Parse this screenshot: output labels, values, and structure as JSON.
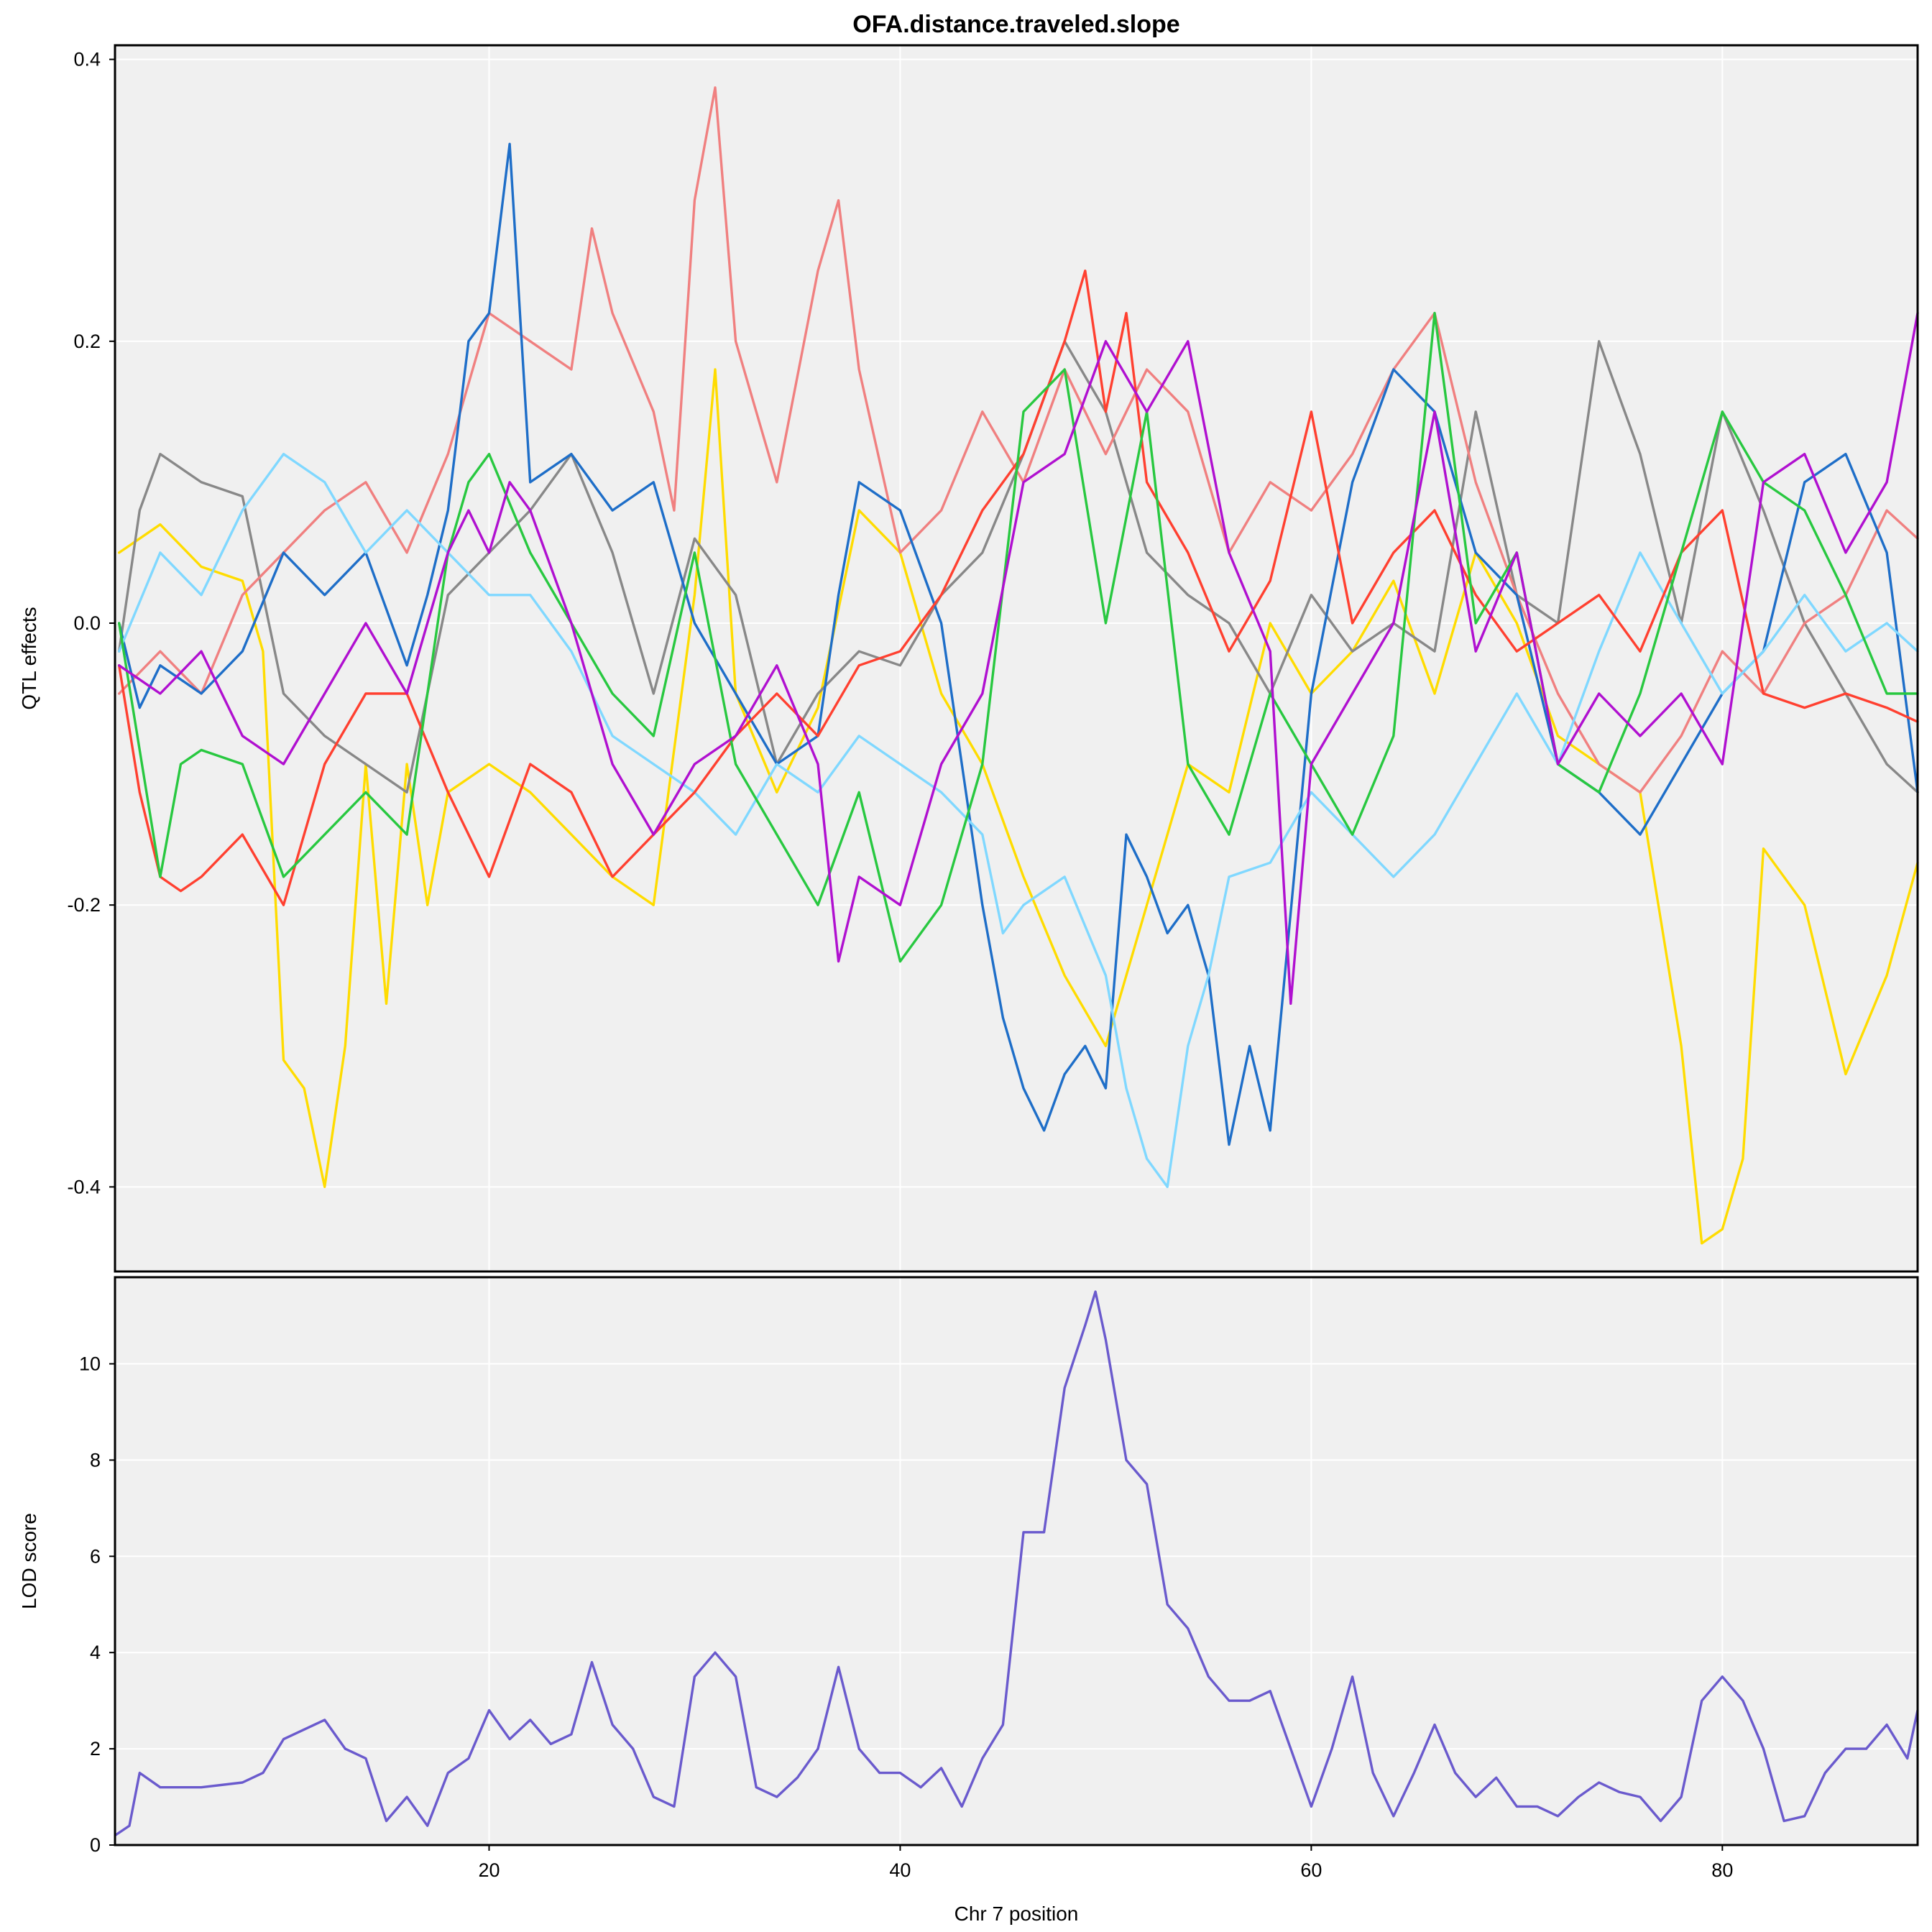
{
  "chart_data": [
    {
      "type": "line",
      "panel": "top",
      "title": "OFA.distance.traveled.slope",
      "xlabel": "",
      "ylabel": "QTL effects",
      "xlim": [
        1.8,
        89.5
      ],
      "ylim": [
        -0.46,
        0.41
      ],
      "x_ticks": [
        20,
        40,
        60,
        80
      ],
      "y_ticks": [
        -0.4,
        -0.2,
        0.0,
        0.2,
        0.4
      ],
      "y_tick_labels": [
        "-0.4",
        "-0.2",
        "0.0",
        "0.2",
        "0.4"
      ],
      "grid": true,
      "legend": "none",
      "series": [
        {
          "color": "#FFDC00",
          "x": [
            2,
            4,
            6,
            8,
            9,
            10,
            11,
            12,
            13,
            14,
            15,
            16,
            17,
            18,
            20,
            22,
            24,
            26,
            28,
            30,
            31,
            32,
            34,
            36,
            38,
            40,
            42,
            44,
            46,
            48,
            50,
            52,
            54,
            56,
            58,
            60,
            62,
            64,
            66,
            68,
            70,
            72,
            74,
            76,
            78,
            79,
            80,
            81,
            82,
            84,
            86,
            88,
            89.5
          ],
          "y": [
            0.05,
            0.07,
            0.04,
            0.03,
            -0.02,
            -0.31,
            -0.33,
            -0.4,
            -0.3,
            -0.1,
            -0.27,
            -0.1,
            -0.2,
            -0.12,
            -0.1,
            -0.12,
            -0.15,
            -0.18,
            -0.2,
            0.02,
            0.18,
            -0.05,
            -0.12,
            -0.06,
            0.08,
            0.05,
            -0.05,
            -0.1,
            -0.18,
            -0.25,
            -0.3,
            -0.2,
            -0.1,
            -0.12,
            0.0,
            -0.05,
            -0.02,
            0.03,
            -0.05,
            0.05,
            0.0,
            -0.08,
            -0.1,
            -0.12,
            -0.3,
            -0.44,
            -0.43,
            -0.38,
            -0.16,
            -0.2,
            -0.32,
            -0.25,
            -0.17
          ]
        },
        {
          "color": "#888888",
          "x": [
            2,
            3,
            4,
            6,
            8,
            10,
            12,
            14,
            16,
            18,
            20,
            22,
            24,
            26,
            28,
            30,
            32,
            34,
            36,
            38,
            40,
            42,
            44,
            46,
            48,
            50,
            52,
            54,
            56,
            58,
            60,
            62,
            64,
            66,
            68,
            70,
            72,
            74,
            76,
            78,
            80,
            82,
            84,
            86,
            88,
            89.5
          ],
          "y": [
            -0.02,
            0.08,
            0.12,
            0.1,
            0.09,
            -0.05,
            -0.08,
            -0.1,
            -0.12,
            0.02,
            0.05,
            0.08,
            0.12,
            0.05,
            -0.05,
            0.06,
            0.02,
            -0.1,
            -0.05,
            -0.02,
            -0.03,
            0.02,
            0.05,
            0.12,
            0.2,
            0.15,
            0.05,
            0.02,
            0.0,
            -0.05,
            0.02,
            -0.02,
            0.0,
            -0.02,
            0.15,
            0.02,
            0.0,
            0.2,
            0.12,
            0.0,
            0.15,
            0.08,
            0.0,
            -0.05,
            -0.1,
            -0.12
          ]
        },
        {
          "color": "#F08080",
          "x": [
            2,
            4,
            6,
            8,
            10,
            12,
            14,
            16,
            18,
            20,
            22,
            24,
            25,
            26,
            28,
            29,
            30,
            31,
            32,
            34,
            36,
            37,
            38,
            40,
            42,
            44,
            46,
            48,
            50,
            52,
            54,
            56,
            58,
            60,
            62,
            64,
            66,
            68,
            70,
            72,
            74,
            76,
            78,
            80,
            82,
            84,
            86,
            88,
            89.5
          ],
          "y": [
            -0.05,
            -0.02,
            -0.05,
            0.02,
            0.05,
            0.08,
            0.1,
            0.05,
            0.12,
            0.22,
            0.2,
            0.18,
            0.28,
            0.22,
            0.15,
            0.08,
            0.3,
            0.38,
            0.2,
            0.1,
            0.25,
            0.3,
            0.18,
            0.05,
            0.08,
            0.15,
            0.1,
            0.18,
            0.12,
            0.18,
            0.15,
            0.05,
            0.1,
            0.08,
            0.12,
            0.18,
            0.22,
            0.1,
            0.02,
            -0.05,
            -0.1,
            -0.12,
            -0.08,
            -0.02,
            -0.05,
            0.0,
            0.02,
            0.08,
            0.06
          ]
        },
        {
          "color": "#1E6EC8",
          "x": [
            2,
            3,
            4,
            6,
            8,
            10,
            12,
            14,
            16,
            17,
            18,
            19,
            20,
            21,
            22,
            24,
            26,
            28,
            30,
            32,
            34,
            36,
            37,
            38,
            40,
            42,
            44,
            45,
            46,
            47,
            48,
            49,
            50,
            51,
            52,
            53,
            54,
            55,
            56,
            57,
            58,
            60,
            62,
            64,
            66,
            68,
            70,
            72,
            74,
            76,
            78,
            80,
            82,
            84,
            86,
            88,
            89.5
          ],
          "y": [
            0.0,
            -0.06,
            -0.03,
            -0.05,
            -0.02,
            0.05,
            0.02,
            0.05,
            -0.03,
            0.02,
            0.08,
            0.2,
            0.22,
            0.34,
            0.1,
            0.12,
            0.08,
            0.1,
            0.0,
            -0.05,
            -0.1,
            -0.08,
            0.02,
            0.1,
            0.08,
            0.0,
            -0.2,
            -0.28,
            -0.33,
            -0.36,
            -0.32,
            -0.3,
            -0.33,
            -0.15,
            -0.18,
            -0.22,
            -0.2,
            -0.25,
            -0.37,
            -0.3,
            -0.36,
            -0.05,
            0.1,
            0.18,
            0.15,
            0.05,
            0.02,
            -0.1,
            -0.12,
            -0.15,
            -0.1,
            -0.05,
            -0.02,
            0.1,
            0.12,
            0.05,
            -0.12
          ]
        },
        {
          "color": "#80D8FF",
          "x": [
            2,
            4,
            6,
            8,
            10,
            12,
            14,
            16,
            18,
            20,
            22,
            24,
            26,
            28,
            30,
            32,
            34,
            36,
            38,
            40,
            42,
            44,
            45,
            46,
            48,
            50,
            51,
            52,
            53,
            54,
            55,
            56,
            58,
            60,
            62,
            64,
            66,
            68,
            70,
            72,
            74,
            76,
            78,
            80,
            82,
            84,
            86,
            88,
            89.5
          ],
          "y": [
            -0.02,
            0.05,
            0.02,
            0.08,
            0.12,
            0.1,
            0.05,
            0.08,
            0.05,
            0.02,
            0.02,
            -0.02,
            -0.08,
            -0.1,
            -0.12,
            -0.15,
            -0.1,
            -0.12,
            -0.08,
            -0.1,
            -0.12,
            -0.15,
            -0.22,
            -0.2,
            -0.18,
            -0.25,
            -0.33,
            -0.38,
            -0.4,
            -0.3,
            -0.25,
            -0.18,
            -0.17,
            -0.12,
            -0.15,
            -0.18,
            -0.15,
            -0.1,
            -0.05,
            -0.1,
            -0.02,
            0.05,
            0.0,
            -0.05,
            -0.02,
            0.02,
            -0.02,
            0.0,
            -0.02
          ]
        },
        {
          "color": "#FF4030",
          "x": [
            2,
            3,
            4,
            5,
            6,
            8,
            10,
            12,
            14,
            16,
            18,
            20,
            22,
            24,
            26,
            28,
            30,
            32,
            34,
            36,
            38,
            40,
            42,
            44,
            46,
            48,
            49,
            50,
            51,
            52,
            54,
            56,
            58,
            60,
            62,
            64,
            66,
            68,
            70,
            72,
            74,
            76,
            78,
            80,
            82,
            84,
            86,
            88,
            89.5
          ],
          "y": [
            -0.03,
            -0.12,
            -0.18,
            -0.19,
            -0.18,
            -0.15,
            -0.2,
            -0.1,
            -0.05,
            -0.05,
            -0.12,
            -0.18,
            -0.1,
            -0.12,
            -0.18,
            -0.15,
            -0.12,
            -0.08,
            -0.05,
            -0.08,
            -0.03,
            -0.02,
            0.02,
            0.08,
            0.12,
            0.2,
            0.25,
            0.15,
            0.22,
            0.1,
            0.05,
            -0.02,
            0.03,
            0.15,
            0.0,
            0.05,
            0.08,
            0.02,
            -0.02,
            0.0,
            0.02,
            -0.02,
            0.05,
            0.08,
            -0.05,
            -0.06,
            -0.05,
            -0.06,
            -0.07
          ]
        },
        {
          "color": "#28C840",
          "x": [
            2,
            4,
            5,
            6,
            8,
            10,
            12,
            14,
            16,
            18,
            19,
            20,
            22,
            24,
            26,
            28,
            30,
            32,
            34,
            36,
            38,
            40,
            42,
            44,
            46,
            48,
            50,
            52,
            54,
            56,
            58,
            60,
            62,
            64,
            66,
            68,
            70,
            72,
            74,
            76,
            78,
            80,
            82,
            84,
            86,
            88,
            89.5
          ],
          "y": [
            0.0,
            -0.18,
            -0.1,
            -0.09,
            -0.1,
            -0.18,
            -0.15,
            -0.12,
            -0.15,
            0.05,
            0.1,
            0.12,
            0.05,
            0.0,
            -0.05,
            -0.08,
            0.05,
            -0.1,
            -0.15,
            -0.2,
            -0.12,
            -0.24,
            -0.2,
            -0.1,
            0.15,
            0.18,
            0.0,
            0.15,
            -0.1,
            -0.15,
            -0.05,
            -0.1,
            -0.15,
            -0.08,
            0.22,
            0.0,
            0.05,
            -0.1,
            -0.12,
            -0.05,
            0.05,
            0.15,
            0.1,
            0.08,
            0.02,
            -0.05,
            -0.05
          ]
        },
        {
          "color": "#B010D0",
          "x": [
            2,
            4,
            6,
            8,
            10,
            12,
            14,
            16,
            18,
            19,
            20,
            21,
            22,
            24,
            26,
            28,
            30,
            32,
            34,
            36,
            37,
            38,
            40,
            42,
            44,
            46,
            48,
            50,
            52,
            54,
            56,
            58,
            59,
            60,
            62,
            64,
            66,
            68,
            70,
            72,
            74,
            76,
            78,
            80,
            82,
            84,
            86,
            88,
            89.5
          ],
          "y": [
            -0.03,
            -0.05,
            -0.02,
            -0.08,
            -0.1,
            -0.05,
            0.0,
            -0.05,
            0.05,
            0.08,
            0.05,
            0.1,
            0.08,
            0.0,
            -0.1,
            -0.15,
            -0.1,
            -0.08,
            -0.03,
            -0.1,
            -0.24,
            -0.18,
            -0.2,
            -0.1,
            -0.05,
            0.1,
            0.12,
            0.2,
            0.15,
            0.2,
            0.05,
            -0.02,
            -0.27,
            -0.1,
            -0.05,
            0.0,
            0.15,
            -0.02,
            0.05,
            -0.1,
            -0.05,
            -0.08,
            -0.05,
            -0.1,
            0.1,
            0.12,
            0.05,
            0.1,
            0.22
          ]
        }
      ]
    },
    {
      "type": "line",
      "panel": "bottom",
      "title": "",
      "xlabel": "Chr 7 position",
      "ylabel": "LOD score",
      "xlim": [
        1.8,
        89.5
      ],
      "ylim": [
        0,
        11.8
      ],
      "x_ticks": [
        20,
        40,
        60,
        80
      ],
      "x_tick_labels": [
        "20",
        "40",
        "60",
        "80"
      ],
      "y_ticks": [
        0,
        2,
        4,
        6,
        8,
        10
      ],
      "y_tick_labels": [
        "0",
        "2",
        "4",
        "6",
        "8",
        "10"
      ],
      "grid": true,
      "legend": "none",
      "series": [
        {
          "color": "#6A5ACD",
          "x": [
            1.8,
            2.5,
            3,
            4,
            6,
            8,
            9,
            10,
            11,
            12,
            13,
            14,
            15,
            16,
            17,
            18,
            19,
            20,
            21,
            22,
            23,
            24,
            25,
            26,
            27,
            28,
            29,
            30,
            31,
            32,
            33,
            34,
            35,
            36,
            37,
            38,
            39,
            40,
            41,
            42,
            43,
            44,
            45,
            46,
            47,
            48,
            49,
            49.5,
            50,
            51,
            52,
            53,
            54,
            55,
            56,
            57,
            58,
            59,
            60,
            61,
            62,
            63,
            64,
            65,
            66,
            67,
            68,
            69,
            70,
            71,
            72,
            73,
            74,
            75,
            76,
            77,
            78,
            79,
            80,
            81,
            82,
            83,
            84,
            85,
            86,
            87,
            88,
            89,
            89.5
          ],
          "y": [
            0.2,
            0.4,
            1.5,
            1.2,
            1.2,
            1.3,
            1.5,
            2.2,
            2.4,
            2.6,
            2.0,
            1.8,
            0.5,
            1.0,
            0.4,
            1.5,
            1.8,
            2.8,
            2.2,
            2.6,
            2.1,
            2.3,
            3.8,
            2.5,
            2.0,
            1.0,
            0.8,
            3.5,
            4.0,
            3.5,
            1.2,
            1.0,
            1.4,
            2.0,
            3.7,
            2.0,
            1.5,
            1.5,
            1.2,
            1.6,
            0.8,
            1.8,
            2.5,
            6.5,
            6.5,
            9.5,
            10.8,
            11.5,
            10.5,
            8.0,
            7.5,
            5.0,
            4.5,
            3.5,
            3.0,
            3.0,
            3.2,
            2.0,
            0.8,
            2.0,
            3.5,
            1.5,
            0.6,
            1.5,
            2.5,
            1.5,
            1.0,
            1.4,
            0.8,
            0.8,
            0.6,
            1.0,
            1.3,
            1.1,
            1.0,
            0.5,
            1.0,
            3.0,
            3.5,
            3.0,
            2.0,
            0.5,
            0.6,
            1.5,
            2.0,
            2.0,
            2.5,
            1.8,
            2.8
          ]
        }
      ]
    }
  ]
}
